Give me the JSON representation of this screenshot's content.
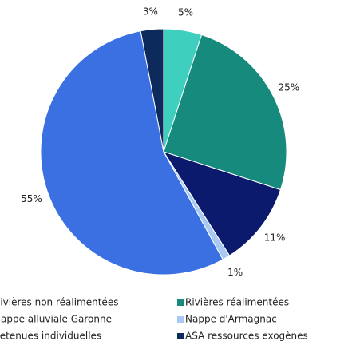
{
  "chart_data": {
    "type": "pie",
    "categories": [
      "Rivières non réalimentées",
      "Rivières réalimentées",
      "Nappe alluviale Garonne",
      "Nappe d'Armagnac",
      "Retenues individuelles",
      "ASA ressources exogènes"
    ],
    "values": [
      5,
      25,
      11,
      1,
      55,
      3
    ],
    "value_labels": [
      "5%",
      "25%",
      "11%",
      "1%",
      "55%",
      "3%"
    ],
    "colors": [
      "#3fcfbf",
      "#168a7c",
      "#0b1a6c",
      "#a9c9f2",
      "#3b70e2",
      "#0d2a5c"
    ]
  }
}
